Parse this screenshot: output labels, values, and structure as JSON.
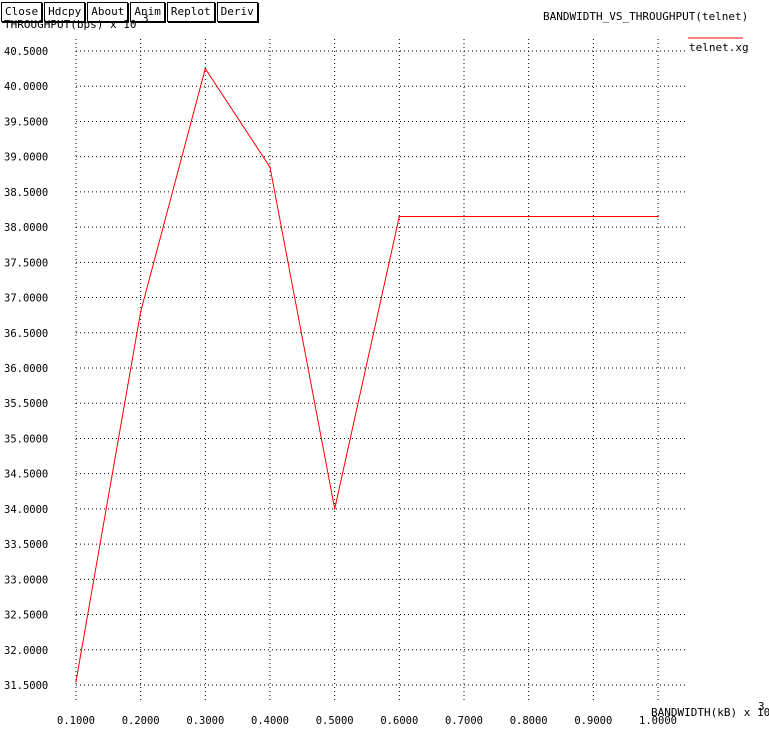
{
  "toolbar": {
    "buttons": [
      "Close",
      "Hdcpy",
      "About",
      "Anim",
      "Replot",
      "Deriv"
    ]
  },
  "chart_data": {
    "type": "line",
    "title": "BANDWIDTH_VS_THROUGHPUT(telnet)",
    "ylabel": "THROUGHPUT(bps) x 10",
    "ylabel_exp": "3",
    "xlabel": "BANDWIDTH(kB) x 10",
    "xlabel_exp": "3",
    "grid": true,
    "legend_position": "top-right",
    "x_ticks": [
      "0.1000",
      "0.2000",
      "0.3000",
      "0.4000",
      "0.5000",
      "0.6000",
      "0.7000",
      "0.8000",
      "0.9000",
      "1.0000"
    ],
    "y_ticks": [
      "31.5000",
      "32.0000",
      "32.5000",
      "33.0000",
      "33.5000",
      "34.0000",
      "34.5000",
      "35.0000",
      "35.5000",
      "36.0000",
      "36.5000",
      "37.0000",
      "37.5000",
      "38.0000",
      "38.5000",
      "39.0000",
      "39.5000",
      "40.0000",
      "40.5000"
    ],
    "xlim": [
      0.1,
      1.0
    ],
    "ylim": [
      31.5,
      40.5
    ],
    "series": [
      {
        "name": "telnet.xg",
        "color": "#ff0000",
        "x": [
          0.1,
          0.2,
          0.3,
          0.4,
          0.5,
          0.6,
          0.7,
          0.8,
          0.9,
          1.0
        ],
        "y": [
          31.55,
          36.8,
          40.25,
          38.85,
          34.0,
          38.15,
          38.15,
          38.15,
          38.15,
          38.15
        ]
      }
    ]
  }
}
